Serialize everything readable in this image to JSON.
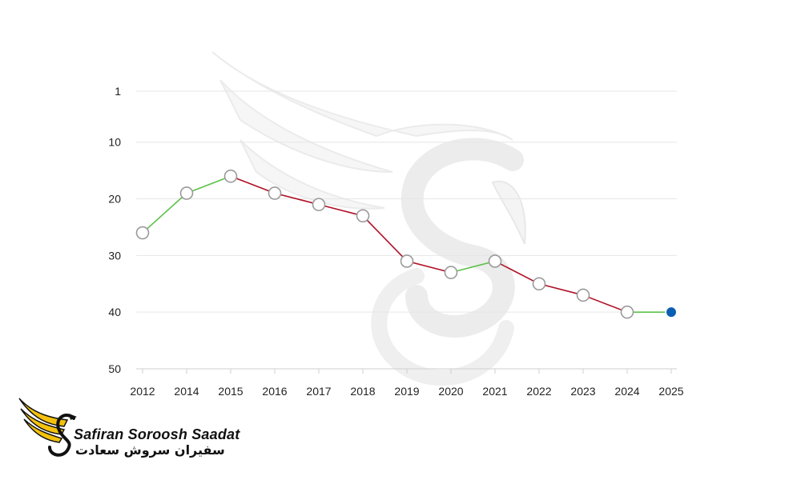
{
  "chart_data": {
    "type": "line",
    "x": [
      "2012",
      "2014",
      "2015",
      "2016",
      "2017",
      "2018",
      "2019",
      "2020",
      "2021",
      "2022",
      "2023",
      "2024",
      "2025"
    ],
    "values": [
      26,
      19,
      16,
      19,
      21,
      23,
      31,
      33,
      31,
      35,
      37,
      40,
      40
    ],
    "y_tick_labels": [
      "1",
      "10",
      "20",
      "30",
      "40",
      "50"
    ],
    "y_ticks": [
      1,
      10,
      20,
      30,
      40,
      50
    ],
    "ylim": [
      1,
      50
    ],
    "y_inverted": true,
    "grid": true,
    "title": "",
    "xlabel": "",
    "ylabel": "",
    "colors": {
      "rise": "#5cc24a",
      "fall": "#b01026",
      "point_fill": "#ffffff",
      "point_stroke": "#9a9a9a",
      "last_point": "#0b5fb3"
    }
  },
  "logo": {
    "name_en": "Safiran Soroosh Saadat",
    "name_fa": "سفیران سروش سعادت",
    "colors": {
      "wing": "#f4c20d",
      "mark": "#111111"
    }
  }
}
